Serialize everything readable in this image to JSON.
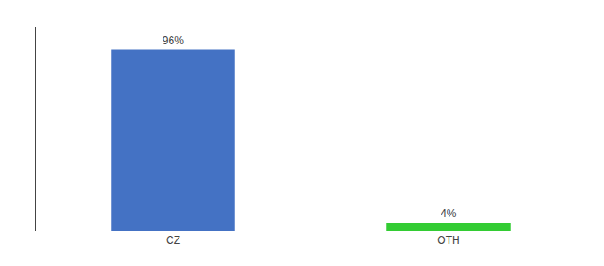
{
  "chart_data": {
    "type": "bar",
    "categories": [
      "CZ",
      "OTH"
    ],
    "values": [
      96,
      4
    ],
    "value_labels": [
      "96%",
      "4%"
    ],
    "colors": [
      "#4472c4",
      "#33cc33"
    ],
    "ylim": [
      0,
      108
    ],
    "grid": false,
    "tick_labels": "x"
  }
}
